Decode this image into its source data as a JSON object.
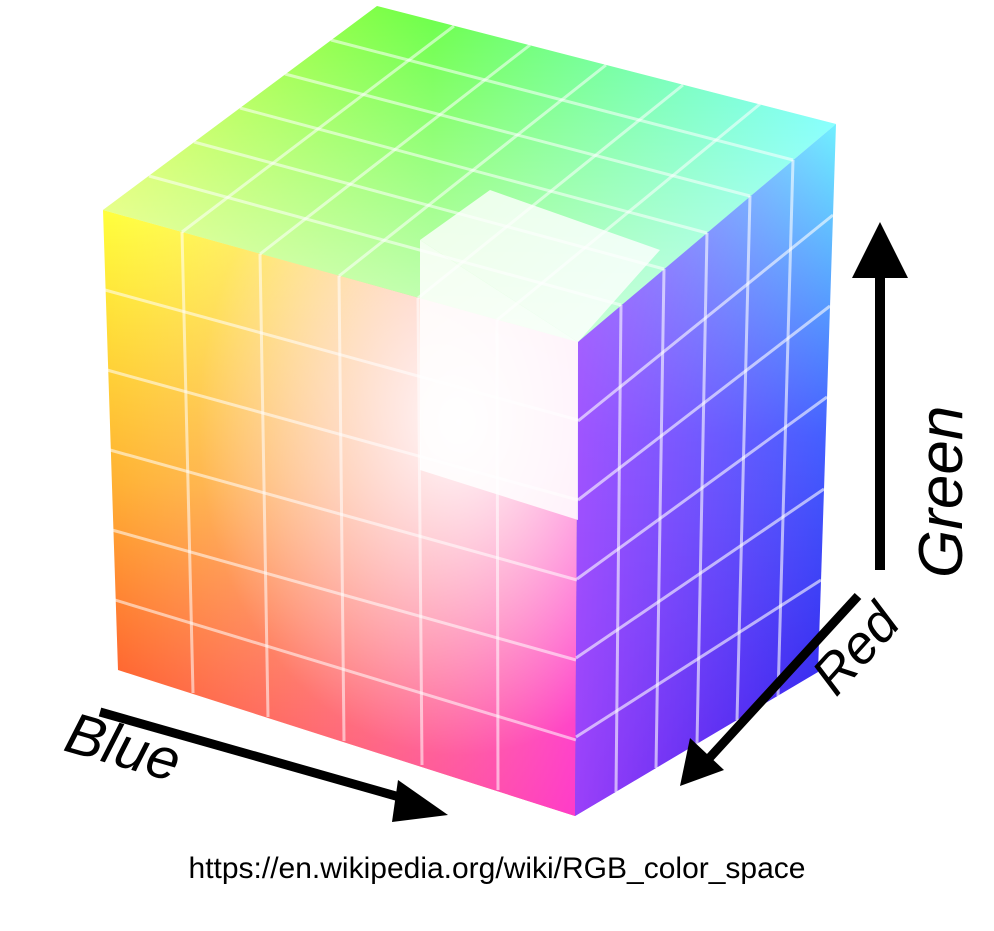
{
  "axes": {
    "blue_label": "Blue",
    "red_label": "Red",
    "green_label": "Green"
  },
  "caption": "https://en.wikipedia.org/wiki/RGB_color_space",
  "colors": {
    "corner_red": "#ff2a1a",
    "corner_yellow": "#ffff33",
    "corner_green": "#66ff44",
    "corner_cyan": "#66ffff",
    "corner_white": "#ffffff",
    "corner_magenta": "#ee33ff",
    "corner_blue": "#2222ee",
    "arrow": "#000000"
  },
  "cube": {
    "divisions": 6,
    "cutout": "top-front corner removed (white)"
  }
}
